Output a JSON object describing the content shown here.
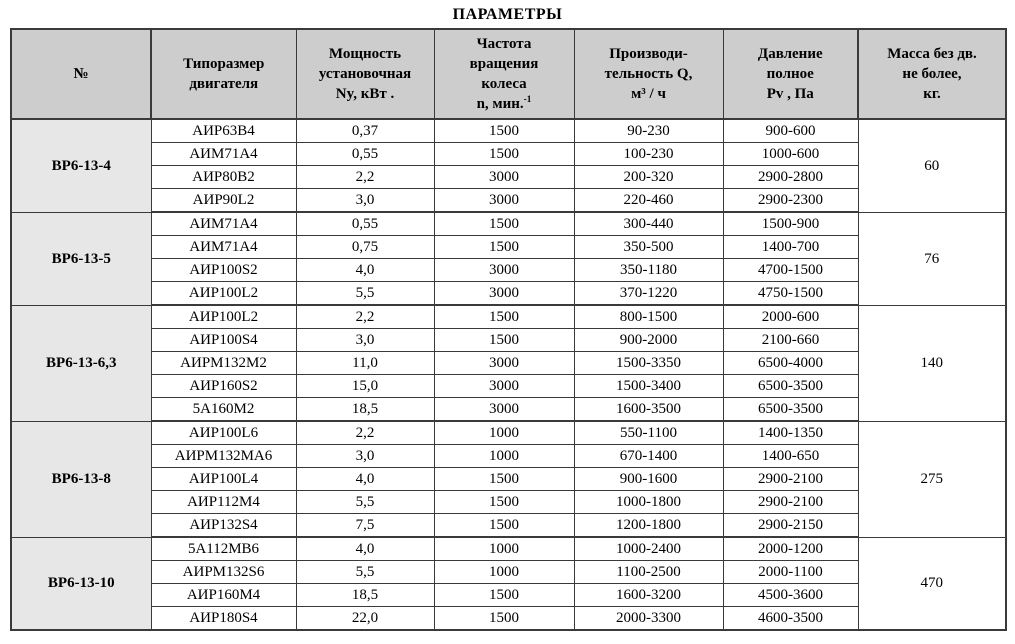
{
  "title": "ПАРАМЕТРЫ",
  "table": {
    "columns": [
      {
        "key": "num",
        "label_lines": [
          "№"
        ]
      },
      {
        "key": "motor",
        "label_lines": [
          "Типоразмер",
          "двигателя"
        ]
      },
      {
        "key": "power",
        "label_lines": [
          "Мощность",
          "установочная",
          "Ny, кВт ."
        ]
      },
      {
        "key": "speed",
        "label_lines": [
          "Частота",
          "вращения",
          "колеса",
          {
            "text": "n, мин.",
            "sup": "-1"
          }
        ]
      },
      {
        "key": "flow",
        "label_lines": [
          "Производи-",
          "тельность Q,",
          "м³ / ч"
        ]
      },
      {
        "key": "pressure",
        "label_lines": [
          "Давление",
          "полное",
          "Pv , Па"
        ]
      },
      {
        "key": "mass",
        "label_lines": [
          "Масса без дв.",
          "не более,",
          "кг."
        ]
      }
    ],
    "groups": [
      {
        "id": "ВР6-13-4",
        "mass": "60",
        "rows": [
          [
            "АИР63В4",
            "0,37",
            "1500",
            "90-230",
            "900-600"
          ],
          [
            "АИМ71А4",
            "0,55",
            "1500",
            "100-230",
            "1000-600"
          ],
          [
            "АИР80В2",
            "2,2",
            "3000",
            "200-320",
            "2900-2800"
          ],
          [
            "АИР90L2",
            "3,0",
            "3000",
            "220-460",
            "2900-2300"
          ]
        ]
      },
      {
        "id": "ВР6-13-5",
        "mass": "76",
        "rows": [
          [
            "АИМ71А4",
            "0,55",
            "1500",
            "300-440",
            "1500-900"
          ],
          [
            "АИМ71А4",
            "0,75",
            "1500",
            "350-500",
            "1400-700"
          ],
          [
            "АИР100S2",
            "4,0",
            "3000",
            "350-1180",
            "4700-1500"
          ],
          [
            "АИР100L2",
            "5,5",
            "3000",
            "370-1220",
            "4750-1500"
          ]
        ]
      },
      {
        "id": "ВР6-13-6,3",
        "mass": "140",
        "rows": [
          [
            "АИР100L2",
            "2,2",
            "1500",
            "800-1500",
            "2000-600"
          ],
          [
            "АИР100S4",
            "3,0",
            "1500",
            "900-2000",
            "2100-660"
          ],
          [
            "АИРМ132М2",
            "11,0",
            "3000",
            "1500-3350",
            "6500-4000"
          ],
          [
            "АИР160S2",
            "15,0",
            "3000",
            "1500-3400",
            "6500-3500"
          ],
          [
            "5А160М2",
            "18,5",
            "3000",
            "1600-3500",
            "6500-3500"
          ]
        ]
      },
      {
        "id": "ВР6-13-8",
        "mass": "275",
        "rows": [
          [
            "АИР100L6",
            "2,2",
            "1000",
            "550-1100",
            "1400-1350"
          ],
          [
            "АИРМ132МА6",
            "3,0",
            "1000",
            "670-1400",
            "1400-650"
          ],
          [
            "АИР100L4",
            "4,0",
            "1500",
            "900-1600",
            "2900-2100"
          ],
          [
            "АИР112М4",
            "5,5",
            "1500",
            "1000-1800",
            "2900-2100"
          ],
          [
            "АИР132S4",
            "7,5",
            "1500",
            "1200-1800",
            "2900-2150"
          ]
        ]
      },
      {
        "id": "ВР6-13-10",
        "mass": "470",
        "rows": [
          [
            "5А112МВ6",
            "4,0",
            "1000",
            "1000-2400",
            "2000-1200"
          ],
          [
            "АИРМ132S6",
            "5,5",
            "1000",
            "1100-2500",
            "2000-1100"
          ],
          [
            "АИР160М4",
            "18,5",
            "1500",
            "1600-3200",
            "4500-3600"
          ],
          [
            "АИР180S4",
            "22,0",
            "1500",
            "2000-3300",
            "4600-3500"
          ]
        ]
      }
    ]
  },
  "colors": {
    "header_bg": "#cdcdcd",
    "group_bg": "#e7e7e7",
    "border": "#3a3a3a"
  }
}
